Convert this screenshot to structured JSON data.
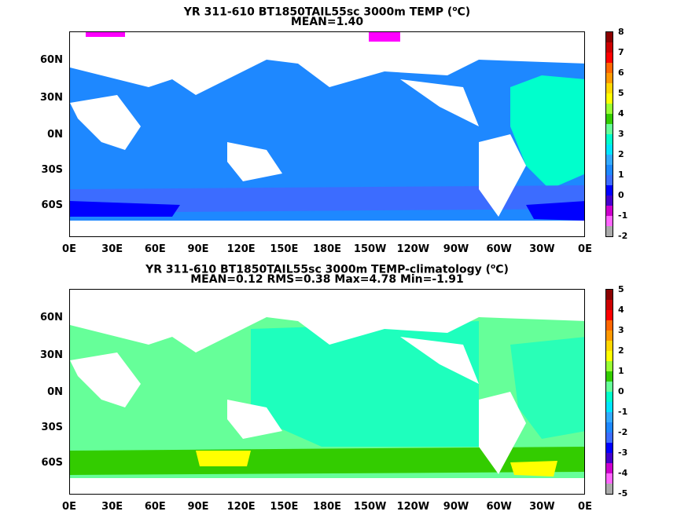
{
  "panel1": {
    "title": "YR 311-610 BT1850TAIL55sc 3000m TEMP (",
    "title_unit": "o",
    "title_tail": "C)",
    "stats": "MEAN=1.40",
    "colorbar": {
      "labels": [
        "8",
        "7",
        "6",
        "5",
        "4",
        "3",
        "2",
        "1",
        "0",
        "-1",
        "-2"
      ],
      "colors": [
        "#8b0000",
        "#cc0000",
        "#ff0000",
        "#ff6600",
        "#ff9900",
        "#ffd700",
        "#ffff00",
        "#99ff33",
        "#33cc00",
        "#66ff99",
        "#00ffcc",
        "#00e5ff",
        "#33aaff",
        "#1e88ff",
        "#3c6cff",
        "#0000ff",
        "#4400cc",
        "#cc00cc",
        "#ff66ff",
        "#aaaaaa"
      ]
    }
  },
  "panel2": {
    "title": "YR 311-610 BT1850TAIL55sc 3000m TEMP-climatology (",
    "title_unit": "o",
    "title_tail": "C)",
    "stats": "MEAN=0.12   RMS=0.38   Max=4.78   Min=-1.91",
    "colorbar": {
      "labels": [
        "5",
        "4",
        "3",
        "2",
        "1",
        "0",
        "-1",
        "-2",
        "-3",
        "-4",
        "-5"
      ],
      "colors": [
        "#8b0000",
        "#cc0000",
        "#ff0000",
        "#ff6600",
        "#ff9900",
        "#ffd700",
        "#ffff00",
        "#99ff33",
        "#33cc00",
        "#66ff99",
        "#00ffcc",
        "#00e5ff",
        "#33aaff",
        "#1e88ff",
        "#3c6cff",
        "#0000ff",
        "#4400cc",
        "#cc00cc",
        "#ff66ff",
        "#aaaaaa"
      ]
    }
  },
  "axes": {
    "x_ticks": [
      "0E",
      "30E",
      "60E",
      "90E",
      "120E",
      "150E",
      "180E",
      "150W",
      "120W",
      "90W",
      "60W",
      "30W",
      "0E"
    ],
    "y_ticks": [
      "60N",
      "30N",
      "0N",
      "30S",
      "60S"
    ]
  },
  "fields": {
    "panel1_base": "#1e88ff",
    "panel1_warm": "#00ffcc",
    "panel1_cold": "#0000ff",
    "panel2_base": "#66ff99",
    "panel2_pacific": "#00ffcc",
    "panel2_hot": "#ffff00",
    "panel2_green": "#33cc00"
  }
}
